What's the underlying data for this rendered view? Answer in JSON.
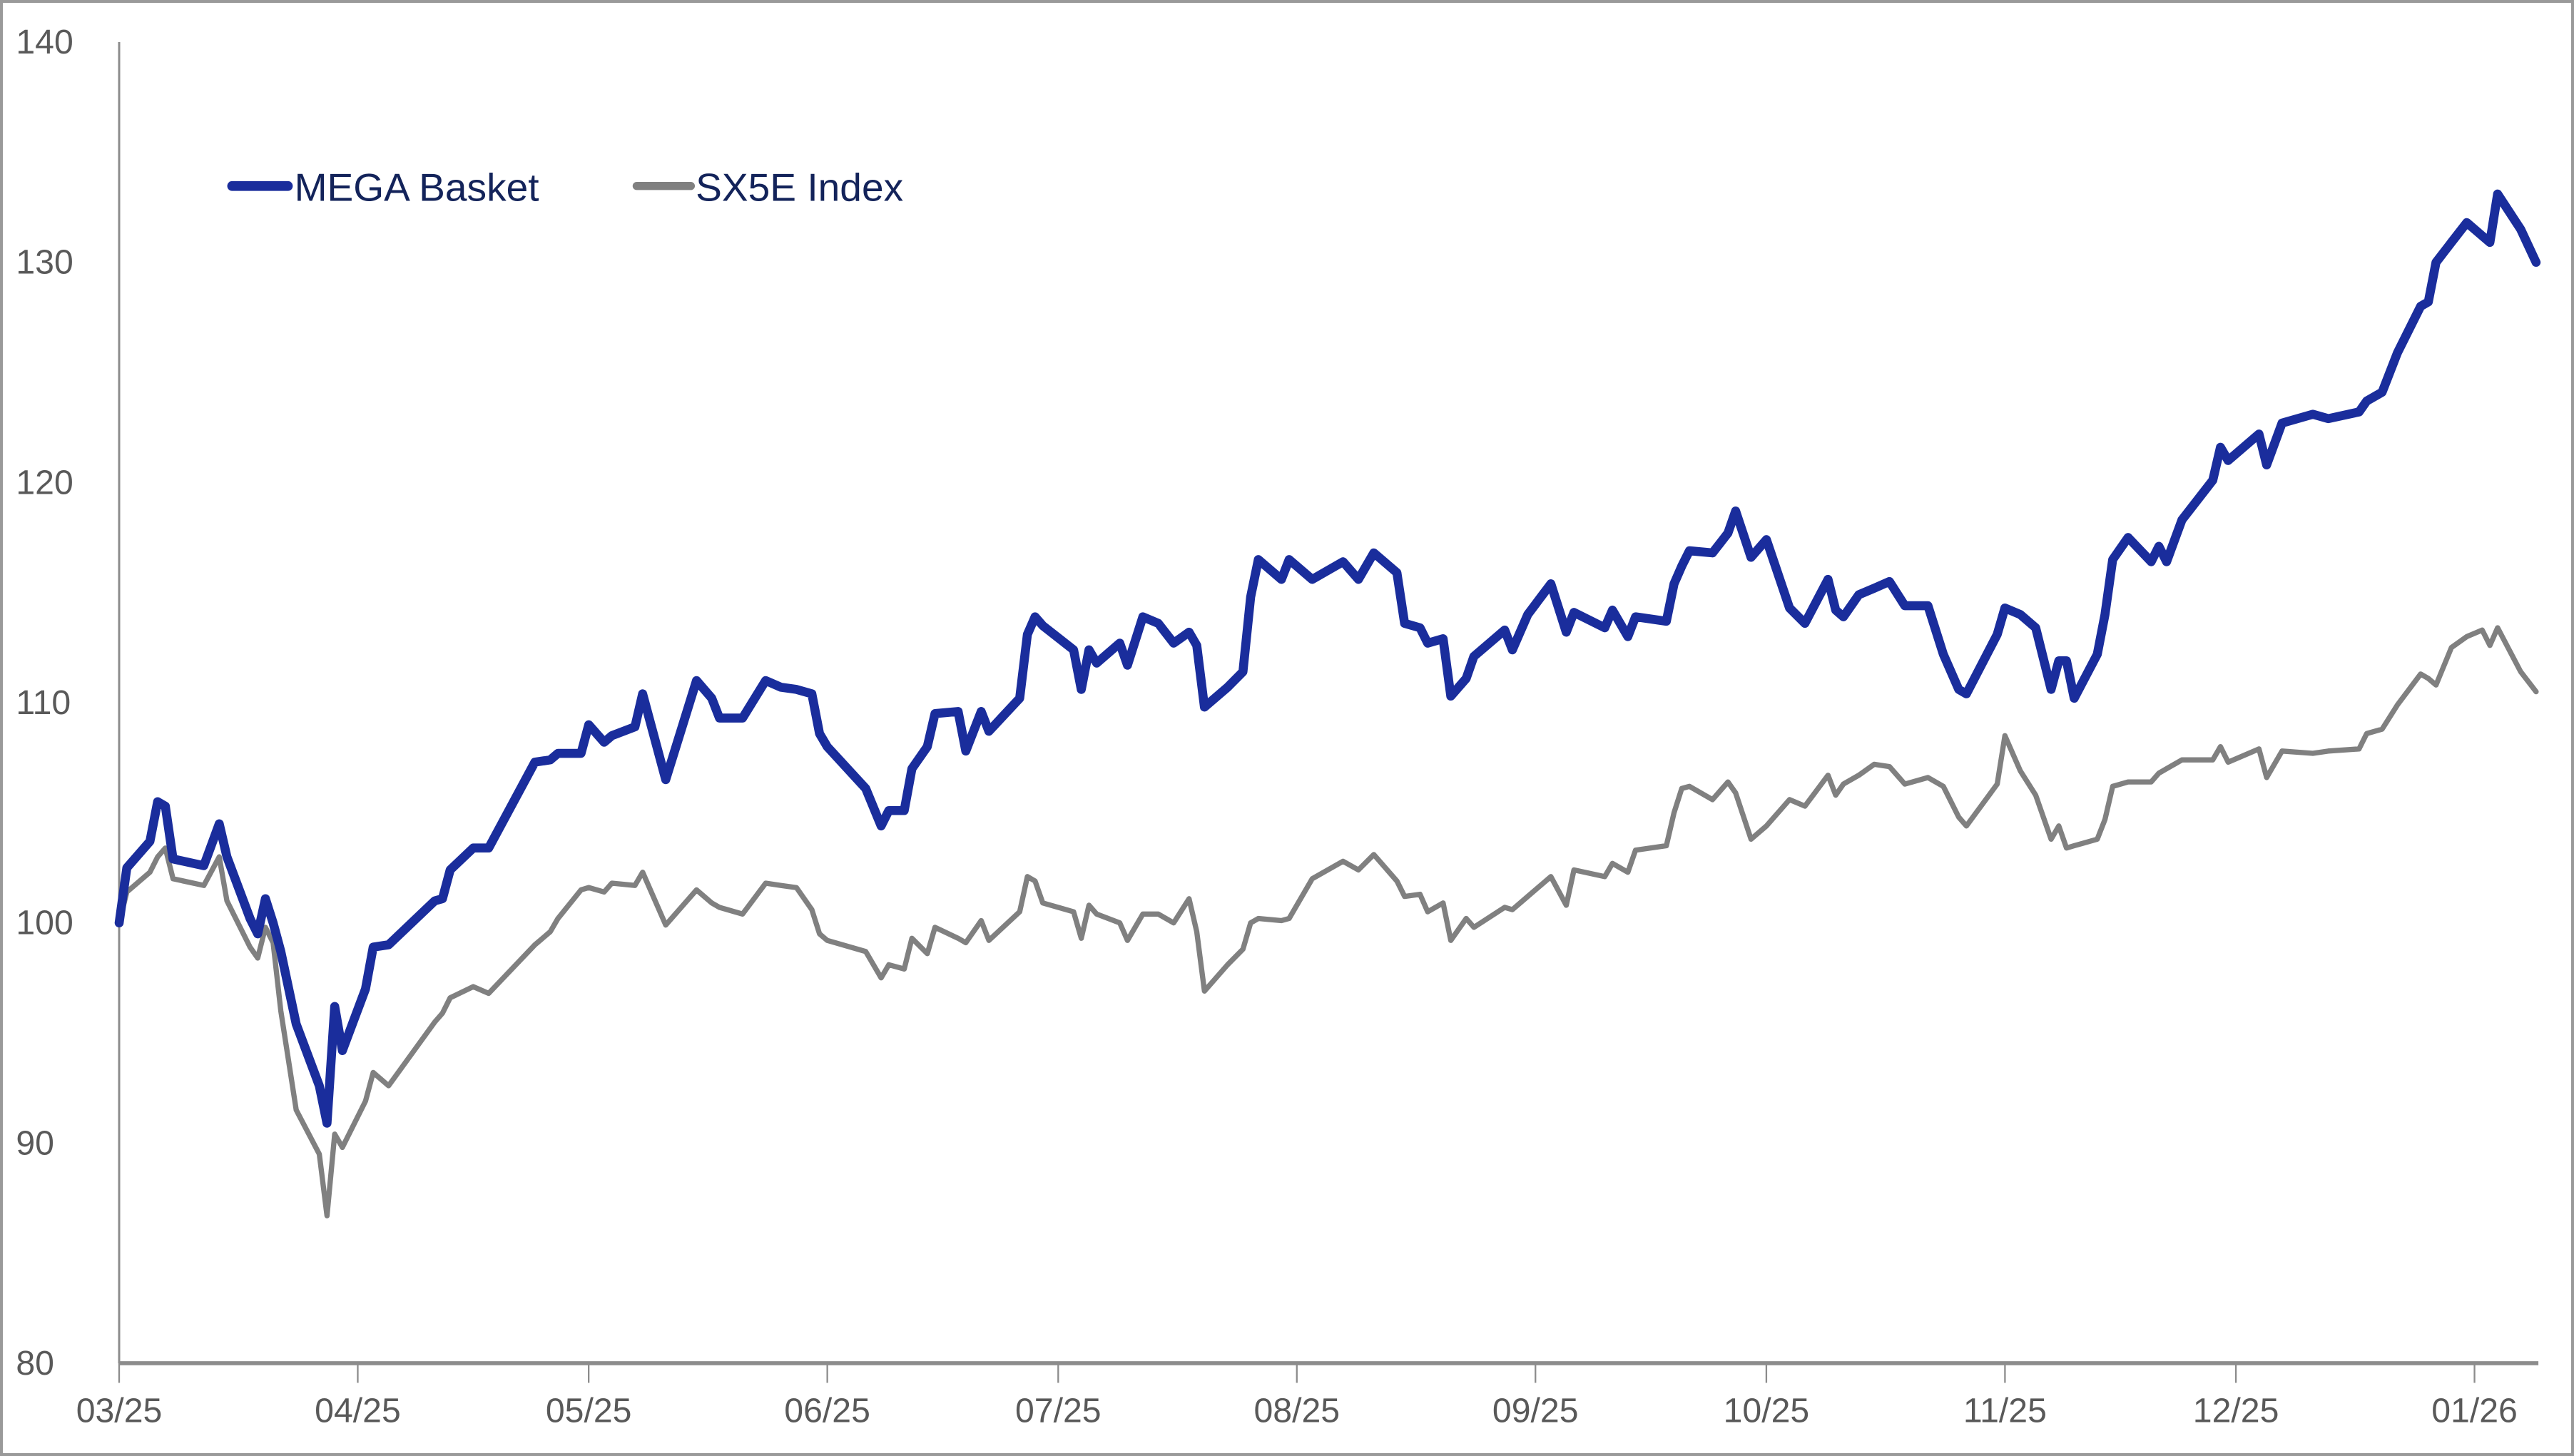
{
  "chart_data": {
    "type": "line",
    "title": "",
    "xlabel": "",
    "ylabel": "",
    "ylim": [
      80,
      140
    ],
    "yticks": [
      "80",
      "90",
      "100",
      "110",
      "120",
      "130",
      "140"
    ],
    "xticks": [
      "03/25",
      "04/25",
      "05/25",
      "06/25",
      "07/25",
      "08/25",
      "09/25",
      "10/25",
      "11/25",
      "12/25",
      "01/26"
    ],
    "xtick_dates": [
      "2025-03-01",
      "2025-04-01",
      "2025-05-01",
      "2025-06-01",
      "2025-07-01",
      "2025-08-01",
      "2025-09-01",
      "2025-10-01",
      "2025-11-01",
      "2025-12-01",
      "2026-01-01"
    ],
    "grid": false,
    "legend_position": "top-left",
    "x": [
      "2025-03-01",
      "2025-03-02",
      "2025-03-05",
      "2025-03-06",
      "2025-03-07",
      "2025-03-08",
      "2025-03-12",
      "2025-03-14",
      "2025-03-15",
      "2025-03-18",
      "2025-03-19",
      "2025-03-20",
      "2025-03-21",
      "2025-03-22",
      "2025-03-24",
      "2025-03-27",
      "2025-03-28",
      "2025-03-29",
      "2025-03-30",
      "2025-04-02",
      "2025-04-03",
      "2025-04-05",
      "2025-04-11",
      "2025-04-12",
      "2025-04-13",
      "2025-04-16",
      "2025-04-18",
      "2025-04-24",
      "2025-04-26",
      "2025-04-27",
      "2025-04-30",
      "2025-05-01",
      "2025-05-03",
      "2025-05-04",
      "2025-05-07",
      "2025-05-08",
      "2025-05-11",
      "2025-05-15",
      "2025-05-17",
      "2025-05-18",
      "2025-05-21",
      "2025-05-24",
      "2025-05-26",
      "2025-05-28",
      "2025-05-30",
      "2025-05-31",
      "2025-06-01",
      "2025-06-06",
      "2025-06-08",
      "2025-06-09",
      "2025-06-11",
      "2025-06-12",
      "2025-06-14",
      "2025-06-15",
      "2025-06-18",
      "2025-06-19",
      "2025-06-21",
      "2025-06-22",
      "2025-06-26",
      "2025-06-27",
      "2025-06-28",
      "2025-06-29",
      "2025-07-03",
      "2025-07-04",
      "2025-07-05",
      "2025-07-06",
      "2025-07-09",
      "2025-07-10",
      "2025-07-12",
      "2025-07-14",
      "2025-07-16",
      "2025-07-18",
      "2025-07-19",
      "2025-07-20",
      "2025-07-23",
      "2025-07-25",
      "2025-07-26",
      "2025-07-27",
      "2025-07-30",
      "2025-07-31",
      "2025-08-03",
      "2025-08-07",
      "2025-08-09",
      "2025-08-11",
      "2025-08-14",
      "2025-08-15",
      "2025-08-17",
      "2025-08-18",
      "2025-08-20",
      "2025-08-21",
      "2025-08-23",
      "2025-08-24",
      "2025-08-28",
      "2025-08-29",
      "2025-08-31",
      "2025-09-03",
      "2025-09-05",
      "2025-09-06",
      "2025-09-10",
      "2025-09-11",
      "2025-09-13",
      "2025-09-14",
      "2025-09-18",
      "2025-09-19",
      "2025-09-20",
      "2025-09-21",
      "2025-09-24",
      "2025-09-26",
      "2025-09-27",
      "2025-09-29",
      "2025-10-01",
      "2025-10-04",
      "2025-10-06",
      "2025-10-09",
      "2025-10-10",
      "2025-10-11",
      "2025-10-13",
      "2025-10-15",
      "2025-10-17",
      "2025-10-19",
      "2025-10-22",
      "2025-10-24",
      "2025-10-26",
      "2025-10-27",
      "2025-10-31",
      "2025-11-01",
      "2025-11-03",
      "2025-11-05",
      "2025-11-07",
      "2025-11-08",
      "2025-11-09",
      "2025-11-10",
      "2025-11-13",
      "2025-11-14",
      "2025-11-15",
      "2025-11-17",
      "2025-11-20",
      "2025-11-21",
      "2025-11-22",
      "2025-11-24",
      "2025-11-28",
      "2025-11-29",
      "2025-11-30",
      "2025-12-04",
      "2025-12-05",
      "2025-12-07",
      "2025-12-11",
      "2025-12-13",
      "2025-12-17",
      "2025-12-18",
      "2025-12-20",
      "2025-12-22",
      "2025-12-25",
      "2025-12-26",
      "2025-12-27",
      "2025-12-29",
      "2025-12-31",
      "2026-01-02",
      "2026-01-03",
      "2026-01-04",
      "2026-01-07",
      "2026-01-09"
    ],
    "series": [
      {
        "name": "MEGA Basket",
        "color": "#1a2d9c",
        "values": [
          100.0,
          102.5,
          103.7,
          105.5,
          105.3,
          102.9,
          102.6,
          104.5,
          103.0,
          100.2,
          99.5,
          101.1,
          100.0,
          98.7,
          95.4,
          92.6,
          90.9,
          96.2,
          94.2,
          97.0,
          98.9,
          99.0,
          101.0,
          101.1,
          102.4,
          103.4,
          103.4,
          107.3,
          107.4,
          107.7,
          107.7,
          109.0,
          108.2,
          108.5,
          108.9,
          110.4,
          106.5,
          111.0,
          110.2,
          109.3,
          109.3,
          111.0,
          110.7,
          110.6,
          110.4,
          108.6,
          108.0,
          106.1,
          104.4,
          105.1,
          105.1,
          107.0,
          108.0,
          109.5,
          109.6,
          107.8,
          109.6,
          108.7,
          110.2,
          113.1,
          113.9,
          113.5,
          112.4,
          110.6,
          112.4,
          111.8,
          112.7,
          111.7,
          113.9,
          113.6,
          112.7,
          113.2,
          112.6,
          109.8,
          110.7,
          111.4,
          114.8,
          116.5,
          115.6,
          116.5,
          115.6,
          116.4,
          115.6,
          116.8,
          115.9,
          113.6,
          113.4,
          112.7,
          112.9,
          110.3,
          111.1,
          112.1,
          113.3,
          112.4,
          114.0,
          115.4,
          113.2,
          114.1,
          113.4,
          114.2,
          113.0,
          113.9,
          113.7,
          115.4,
          116.2,
          116.9,
          116.8,
          117.7,
          118.7,
          116.6,
          117.4,
          114.3,
          113.6,
          115.6,
          114.2,
          113.9,
          114.9,
          115.2,
          115.5,
          114.4,
          114.4,
          112.2,
          110.6,
          110.4,
          113.1,
          114.3,
          114.0,
          113.4,
          110.6,
          111.9,
          111.9,
          110.2,
          112.2,
          114.0,
          116.5,
          117.5,
          116.4,
          117.1,
          116.4,
          118.3,
          120.1,
          121.6,
          121.0,
          122.2,
          120.8,
          122.7,
          123.1,
          122.9,
          123.2,
          123.7,
          124.1,
          125.9,
          128.0,
          128.2,
          130.0,
          130.9,
          131.8,
          131.2,
          130.9,
          133.1,
          131.5,
          130.0
        ]
      },
      {
        "name": "SX5E Index",
        "color": "#808080",
        "values": [
          100.0,
          101.4,
          102.3,
          103.0,
          103.4,
          102.0,
          101.7,
          103.0,
          101.0,
          98.9,
          98.4,
          99.8,
          99.1,
          96.0,
          91.5,
          89.5,
          86.7,
          90.4,
          89.8,
          91.9,
          93.2,
          92.6,
          95.5,
          95.9,
          96.6,
          97.1,
          96.8,
          99.0,
          99.6,
          100.2,
          101.5,
          101.6,
          101.4,
          101.8,
          101.7,
          102.3,
          99.9,
          101.5,
          100.9,
          100.7,
          100.4,
          101.8,
          101.7,
          101.6,
          100.6,
          99.5,
          99.2,
          98.7,
          97.5,
          98.1,
          97.9,
          99.3,
          98.6,
          99.8,
          99.3,
          99.1,
          100.1,
          99.2,
          100.5,
          102.1,
          101.9,
          100.9,
          100.5,
          99.3,
          100.8,
          100.4,
          100.0,
          99.2,
          100.4,
          100.4,
          100.0,
          101.1,
          99.6,
          96.9,
          98.1,
          98.8,
          100.0,
          100.2,
          100.1,
          100.2,
          102.0,
          102.8,
          102.4,
          103.1,
          101.9,
          101.2,
          101.3,
          100.5,
          100.9,
          99.2,
          100.2,
          99.8,
          100.7,
          100.6,
          101.2,
          102.1,
          100.8,
          102.4,
          102.1,
          102.7,
          102.3,
          103.3,
          103.5,
          105.0,
          106.1,
          106.2,
          105.6,
          106.4,
          105.9,
          103.8,
          104.4,
          105.6,
          105.3,
          106.7,
          105.8,
          106.3,
          106.7,
          107.2,
          107.1,
          106.3,
          106.6,
          106.2,
          104.8,
          104.4,
          106.3,
          108.5,
          106.9,
          105.8,
          103.8,
          104.4,
          103.4,
          103.5,
          103.8,
          104.7,
          106.2,
          106.4,
          106.4,
          106.8,
          107.0,
          107.4,
          107.4,
          108.0,
          107.3,
          107.9,
          106.6,
          107.8,
          107.7,
          107.8,
          107.9,
          108.6,
          108.8,
          109.9,
          111.3,
          111.1,
          110.8,
          112.5,
          113.0,
          113.3,
          112.6,
          113.4,
          111.4,
          110.5
        ]
      }
    ]
  },
  "colors": {
    "axis": "#8c8c8c",
    "tick_text": "#595959",
    "legend_text": "#13235a"
  }
}
